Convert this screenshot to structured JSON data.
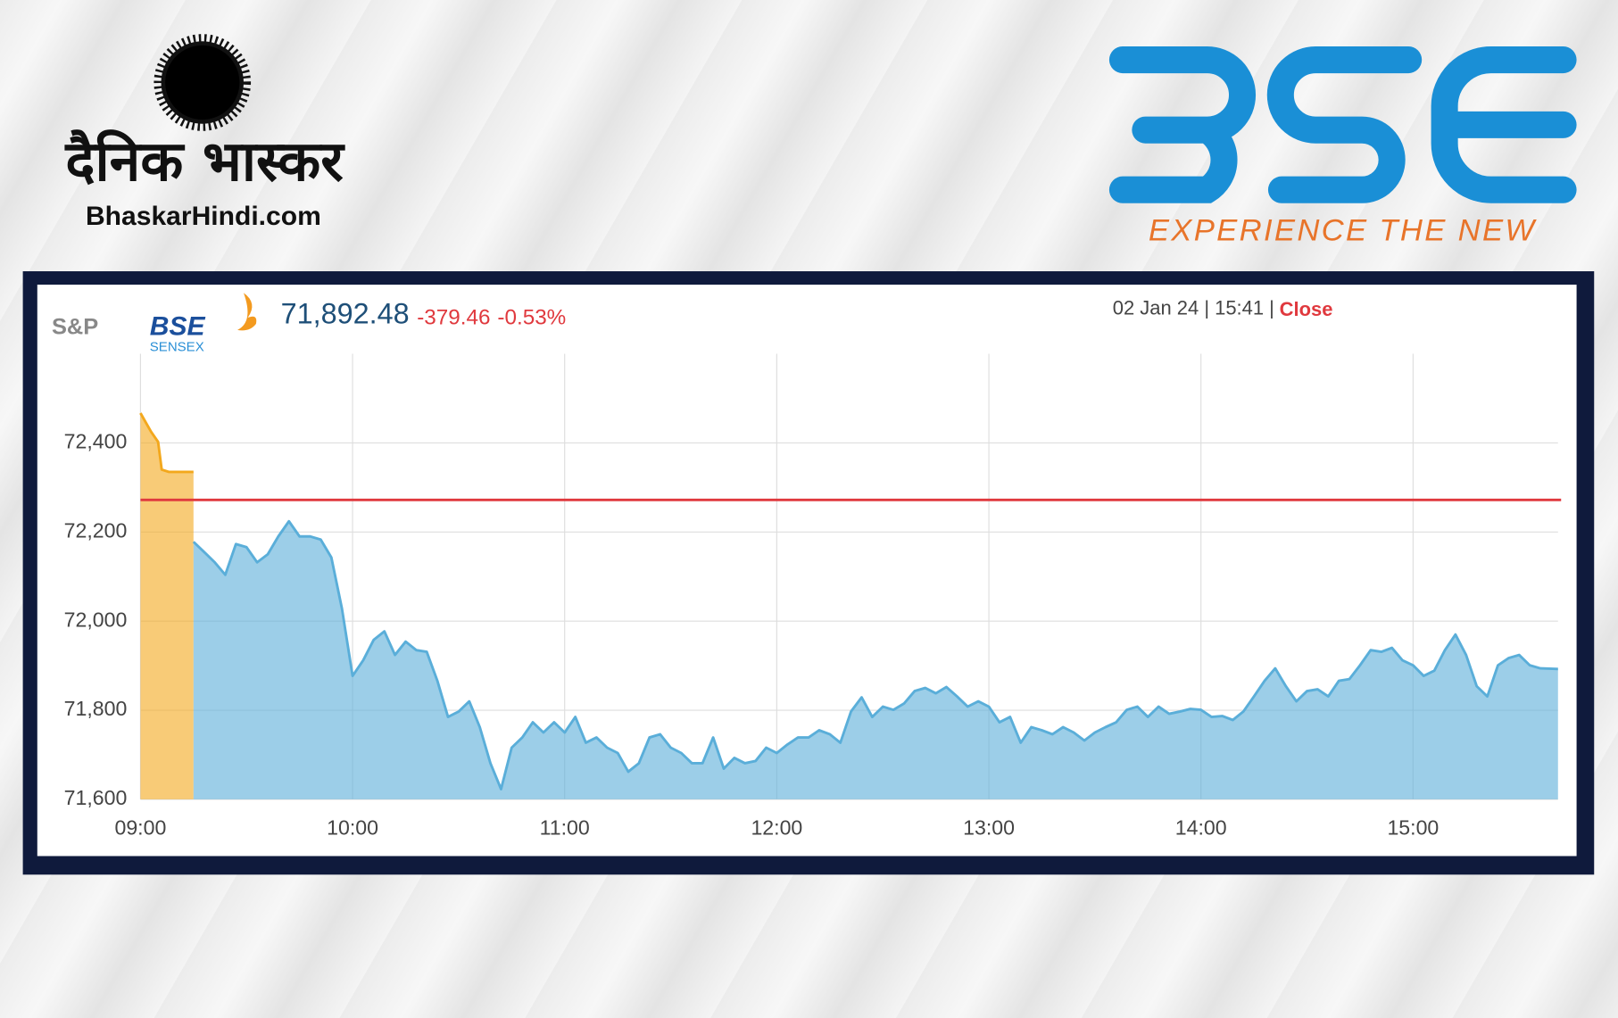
{
  "branding": {
    "hindi_name": "दैनिक भास्कर",
    "site": "BhaskarHindi.com",
    "tagline": "EXPERIENCE THE NEW"
  },
  "chart_data": {
    "type": "area",
    "index_logo": {
      "sp": "S&P",
      "bse": "BSE",
      "name": "SENSEX"
    },
    "quote": {
      "price": "71,892.48",
      "change": "-379.46",
      "change_percent": "-0.53%",
      "timestamp": "02 Jan 24 | 15:41 |",
      "status": "Close"
    },
    "xlim": [
      "09:00",
      "15:41"
    ],
    "xticks": [
      "09:00",
      "10:00",
      "11:00",
      "12:00",
      "13:00",
      "14:00",
      "15:00"
    ],
    "ylim": [
      71600,
      72600
    ],
    "yticks": [
      {
        "value": 71600,
        "label": "71,600"
      },
      {
        "value": 71800,
        "label": "71,800"
      },
      {
        "value": 72000,
        "label": "72,000"
      },
      {
        "value": 72200,
        "label": "72,200"
      },
      {
        "value": 72400,
        "label": "72,400"
      }
    ],
    "grid": true,
    "reference_line": {
      "value": 72271.94,
      "color": "#e0393e"
    },
    "series": [
      {
        "color": "#f3a81d",
        "x": [
          "09:00",
          "09:03",
          "09:05",
          "09:06",
          "09:08",
          "09:15"
        ],
        "values": [
          72467,
          72425,
          72402,
          72340,
          72335,
          72335
        ]
      },
      {
        "color": "#5aaed9",
        "x": [
          "09:15",
          "09:18",
          "09:21",
          "09:24",
          "09:27",
          "09:30",
          "09:33",
          "09:36",
          "09:39",
          "09:42",
          "09:45",
          "09:48",
          "09:51",
          "09:54",
          "09:57",
          "10:00",
          "10:03",
          "10:06",
          "10:09",
          "10:12",
          "10:15",
          "10:18",
          "10:21",
          "10:24",
          "10:27",
          "10:30",
          "10:33",
          "10:36",
          "10:39",
          "10:42",
          "10:45",
          "10:48",
          "10:51",
          "10:54",
          "10:57",
          "11:00",
          "11:03",
          "11:06",
          "11:09",
          "11:12",
          "11:15",
          "11:18",
          "11:21",
          "11:24",
          "11:27",
          "11:30",
          "11:33",
          "11:36",
          "11:39",
          "11:42",
          "11:45",
          "11:48",
          "11:51",
          "11:54",
          "11:57",
          "12:00",
          "12:03",
          "12:06",
          "12:09",
          "12:12",
          "12:15",
          "12:18",
          "12:21",
          "12:24",
          "12:27",
          "12:30",
          "12:33",
          "12:36",
          "12:39",
          "12:42",
          "12:45",
          "12:48",
          "12:51",
          "12:54",
          "12:57",
          "13:00",
          "13:03",
          "13:06",
          "13:09",
          "13:12",
          "13:15",
          "13:18",
          "13:21",
          "13:24",
          "13:27",
          "13:30",
          "13:33",
          "13:36",
          "13:39",
          "13:42",
          "13:45",
          "13:48",
          "13:51",
          "13:54",
          "13:57",
          "14:00",
          "14:03",
          "14:06",
          "14:09",
          "14:12",
          "14:15",
          "14:18",
          "14:21",
          "14:24",
          "14:27",
          "14:30",
          "14:33",
          "14:36",
          "14:39",
          "14:42",
          "14:45",
          "14:48",
          "14:51",
          "14:54",
          "14:57",
          "15:00",
          "15:03",
          "15:06",
          "15:09",
          "15:12",
          "15:15",
          "15:18",
          "15:21",
          "15:24",
          "15:27",
          "15:30",
          "15:33",
          "15:36",
          "15:41"
        ],
        "values": [
          72178,
          72155,
          72132,
          72104,
          72173,
          72166,
          72132,
          72150,
          72190,
          72224,
          72190,
          72190,
          72183,
          72143,
          72028,
          71877,
          71912,
          71958,
          71977,
          71924,
          71954,
          71935,
          71931,
          71866,
          71785,
          71797,
          71820,
          71762,
          71681,
          71623,
          71716,
          71739,
          71773,
          71750,
          71773,
          71750,
          71785,
          71727,
          71739,
          71716,
          71704,
          71662,
          71681,
          71739,
          71746,
          71716,
          71704,
          71681,
          71681,
          71739,
          71669,
          71693,
          71681,
          71686,
          71716,
          71704,
          71723,
          71739,
          71739,
          71755,
          71746,
          71727,
          71797,
          71829,
          71785,
          71808,
          71801,
          71815,
          71843,
          71850,
          71838,
          71852,
          71831,
          71808,
          71820,
          71808,
          71773,
          71785,
          71727,
          71762,
          71755,
          71746,
          71762,
          71750,
          71732,
          71750,
          71762,
          71773,
          71801,
          71808,
          71785,
          71808,
          71792,
          71797,
          71803,
          71801,
          71785,
          71787,
          71778,
          71797,
          71831,
          71866,
          71894,
          71854,
          71820,
          71843,
          71847,
          71831,
          71866,
          71870,
          71901,
          71935,
          71931,
          71940,
          71912,
          71901,
          71877,
          71889,
          71935,
          71970,
          71924,
          71854,
          71831,
          71901,
          71917,
          71924,
          71901,
          71894,
          71892.48
        ]
      }
    ]
  }
}
